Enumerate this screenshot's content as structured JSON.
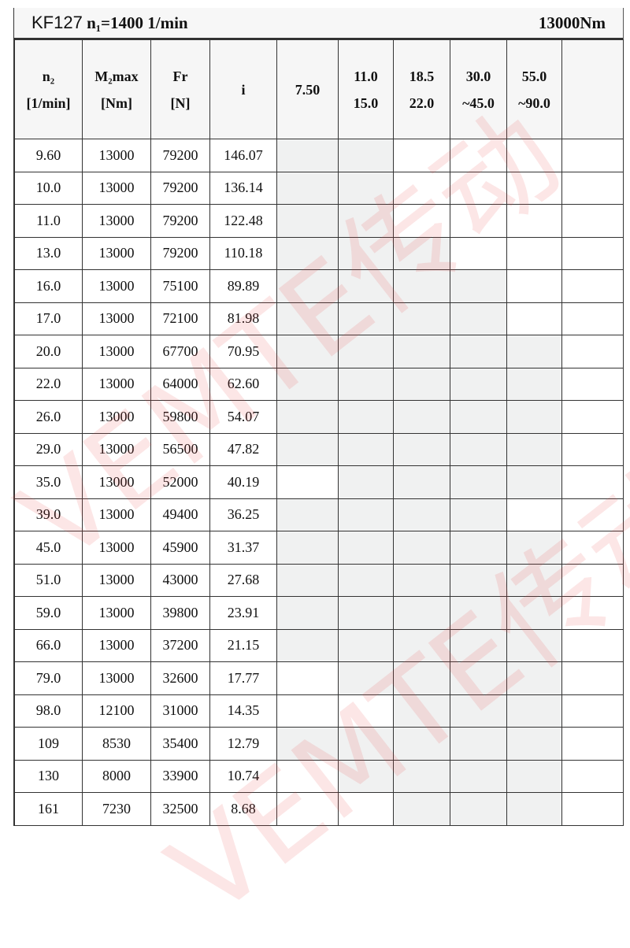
{
  "title": {
    "model": "KF127",
    "input_speed": "n₁=1400 1/min",
    "torque": "13000Nm"
  },
  "headers": [
    {
      "line1": "n₂",
      "line2": "[1/min]"
    },
    {
      "line1": "M₂max",
      "line2": "[Nm]"
    },
    {
      "line1": "Fr",
      "line2": "[N]"
    },
    {
      "line1": "i",
      "line2": ""
    },
    {
      "line1": "7.50",
      "line2": ""
    },
    {
      "line1": "11.0",
      "line2": "15.0"
    },
    {
      "line1": "18.5",
      "line2": "22.0"
    },
    {
      "line1": "30.0",
      "line2": "~45.0"
    },
    {
      "line1": "55.0",
      "line2": "~90.0"
    },
    {
      "line1": "",
      "line2": ""
    }
  ],
  "rows": [
    {
      "n2": "9.60",
      "m2": "13000",
      "fr": "79200",
      "i": "146.07",
      "avail": [
        1,
        1,
        0,
        0,
        0,
        0
      ]
    },
    {
      "n2": "10.0",
      "m2": "13000",
      "fr": "79200",
      "i": "136.14",
      "avail": [
        1,
        1,
        0,
        0,
        0,
        0
      ]
    },
    {
      "n2": "11.0",
      "m2": "13000",
      "fr": "79200",
      "i": "122.48",
      "avail": [
        1,
        1,
        0,
        0,
        0,
        0
      ]
    },
    {
      "n2": "13.0",
      "m2": "13000",
      "fr": "79200",
      "i": "110.18",
      "avail": [
        1,
        1,
        1,
        0,
        0,
        0
      ]
    },
    {
      "n2": "16.0",
      "m2": "13000",
      "fr": "75100",
      "i": "89.89",
      "avail": [
        1,
        1,
        1,
        1,
        0,
        0
      ]
    },
    {
      "n2": "17.0",
      "m2": "13000",
      "fr": "72100",
      "i": "81.98",
      "avail": [
        1,
        1,
        1,
        1,
        0,
        0
      ]
    },
    {
      "n2": "20.0",
      "m2": "13000",
      "fr": "67700",
      "i": "70.95",
      "avail": [
        1,
        1,
        1,
        1,
        1,
        0
      ]
    },
    {
      "n2": "22.0",
      "m2": "13000",
      "fr": "64000",
      "i": "62.60",
      "avail": [
        1,
        1,
        1,
        1,
        1,
        0
      ]
    },
    {
      "n2": "26.0",
      "m2": "13000",
      "fr": "59800",
      "i": "54.07",
      "avail": [
        1,
        1,
        1,
        1,
        1,
        0
      ]
    },
    {
      "n2": "29.0",
      "m2": "13000",
      "fr": "56500",
      "i": "47.82",
      "avail": [
        1,
        1,
        1,
        1,
        1,
        0
      ]
    },
    {
      "n2": "35.0",
      "m2": "13000",
      "fr": "52000",
      "i": "40.19",
      "avail": [
        0,
        1,
        1,
        1,
        1,
        0
      ]
    },
    {
      "n2": "39.0",
      "m2": "13000",
      "fr": "49400",
      "i": "36.25",
      "avail": [
        1,
        1,
        1,
        1,
        0,
        0
      ]
    },
    {
      "n2": "45.0",
      "m2": "13000",
      "fr": "45900",
      "i": "31.37",
      "avail": [
        1,
        1,
        1,
        1,
        1,
        0
      ]
    },
    {
      "n2": "51.0",
      "m2": "13000",
      "fr": "43000",
      "i": "27.68",
      "avail": [
        1,
        1,
        1,
        1,
        1,
        0
      ]
    },
    {
      "n2": "59.0",
      "m2": "13000",
      "fr": "39800",
      "i": "23.91",
      "avail": [
        1,
        1,
        1,
        1,
        1,
        0
      ]
    },
    {
      "n2": "66.0",
      "m2": "13000",
      "fr": "37200",
      "i": "21.15",
      "avail": [
        1,
        1,
        1,
        1,
        1,
        0
      ]
    },
    {
      "n2": "79.0",
      "m2": "13000",
      "fr": "32600",
      "i": "17.77",
      "avail": [
        0,
        1,
        1,
        1,
        1,
        0
      ]
    },
    {
      "n2": "98.0",
      "m2": "12100",
      "fr": "31000",
      "i": "14.35",
      "avail": [
        0,
        0,
        1,
        1,
        1,
        0
      ]
    },
    {
      "n2": "109",
      "m2": "8530",
      "fr": "35400",
      "i": "12.79",
      "avail": [
        1,
        1,
        1,
        1,
        1,
        0
      ]
    },
    {
      "n2": "130",
      "m2": "8000",
      "fr": "33900",
      "i": "10.74",
      "avail": [
        0,
        1,
        1,
        1,
        1,
        0
      ]
    },
    {
      "n2": "161",
      "m2": "7230",
      "fr": "32500",
      "i": "8.68",
      "avail": [
        0,
        0,
        1,
        1,
        1,
        0
      ]
    }
  ],
  "watermark": "VEMTE传动",
  "colors": {
    "shaded": "#f0f1f1",
    "watermark": "#e63c3c"
  }
}
